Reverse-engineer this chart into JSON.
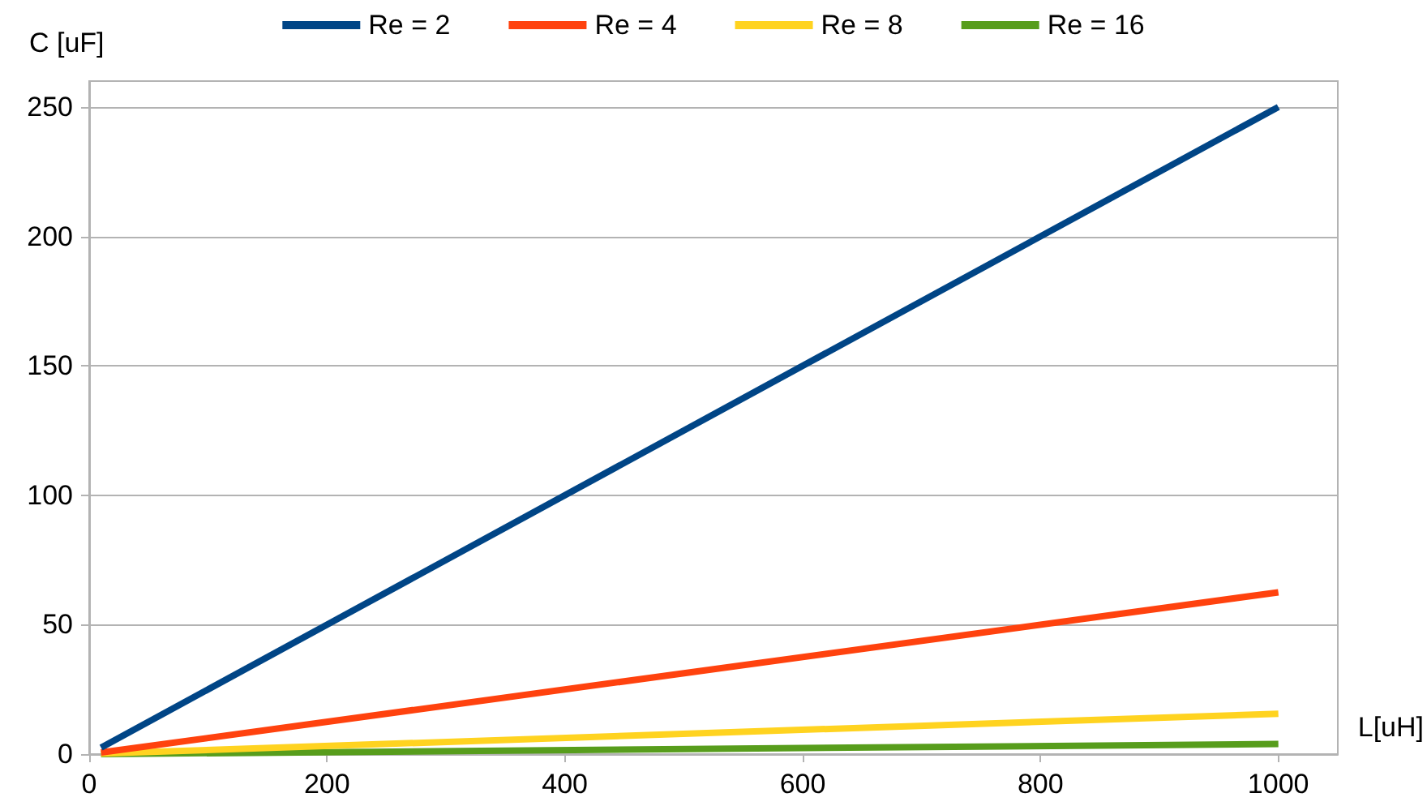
{
  "chart_data": {
    "type": "line",
    "xlabel": "L[uH]",
    "ylabel": "C [uF]",
    "x": [
      10,
      1000
    ],
    "series": [
      {
        "name": "Re = 2",
        "color": "#004586",
        "values": [
          2.5,
          250
        ]
      },
      {
        "name": "Re = 4",
        "color": "#ff420e",
        "values": [
          0.6,
          62.5
        ]
      },
      {
        "name": "Re = 8",
        "color": "#ffd320",
        "values": [
          0.2,
          15.6
        ]
      },
      {
        "name": "Re = 16",
        "color": "#579d1c",
        "values": [
          0,
          3.9
        ]
      }
    ],
    "xlim": [
      0,
      1050
    ],
    "xticks": [
      0,
      200,
      400,
      600,
      800,
      1000
    ],
    "ylim": [
      0,
      260
    ],
    "yticks": [
      0,
      50,
      100,
      150,
      200,
      250
    ],
    "grid": "y",
    "legend": "top",
    "marker": "none",
    "line_style": "solid"
  }
}
